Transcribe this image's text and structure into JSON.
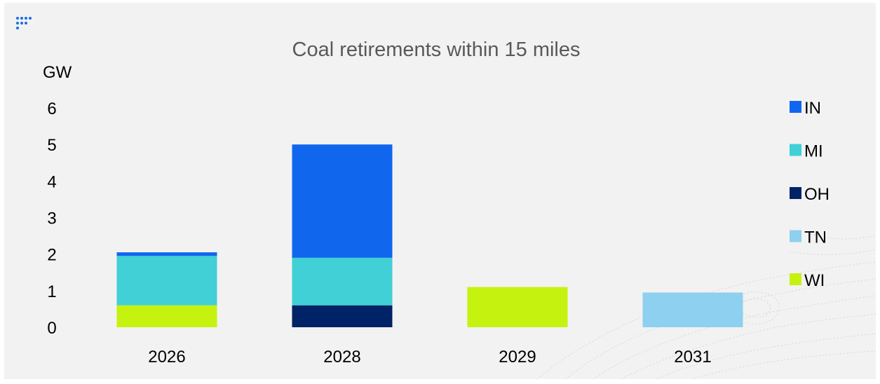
{
  "chart_data": {
    "type": "bar",
    "stacked": true,
    "title": "Coal retirements within 15 miles",
    "ylabel": "GW",
    "xlabel": "",
    "ylim": [
      0,
      6
    ],
    "yticks": [
      "0",
      "1",
      "2",
      "3",
      "4",
      "5",
      "6"
    ],
    "categories": [
      "2026",
      "2028",
      "2029",
      "2031"
    ],
    "series": [
      {
        "name": "WI",
        "color": "#c5f20f",
        "values": [
          0.6,
          0,
          1.1,
          0
        ]
      },
      {
        "name": "TN",
        "color": "#8ed0ef",
        "values": [
          0,
          0,
          0,
          0.95
        ]
      },
      {
        "name": "OH",
        "color": "#002266",
        "values": [
          0,
          0.6,
          0,
          0
        ]
      },
      {
        "name": "MI",
        "color": "#40d0d6",
        "values": [
          1.35,
          1.3,
          0,
          0
        ]
      },
      {
        "name": "IN",
        "color": "#1166ee",
        "values": [
          0.1,
          3.1,
          0,
          0
        ]
      }
    ],
    "legend": {
      "placement": "right",
      "order": [
        "IN",
        "MI",
        "OH",
        "TN",
        "WI"
      ]
    },
    "grid": false
  },
  "logo": {
    "icon": "dots-logo-icon",
    "color": "#1a6ee8"
  }
}
